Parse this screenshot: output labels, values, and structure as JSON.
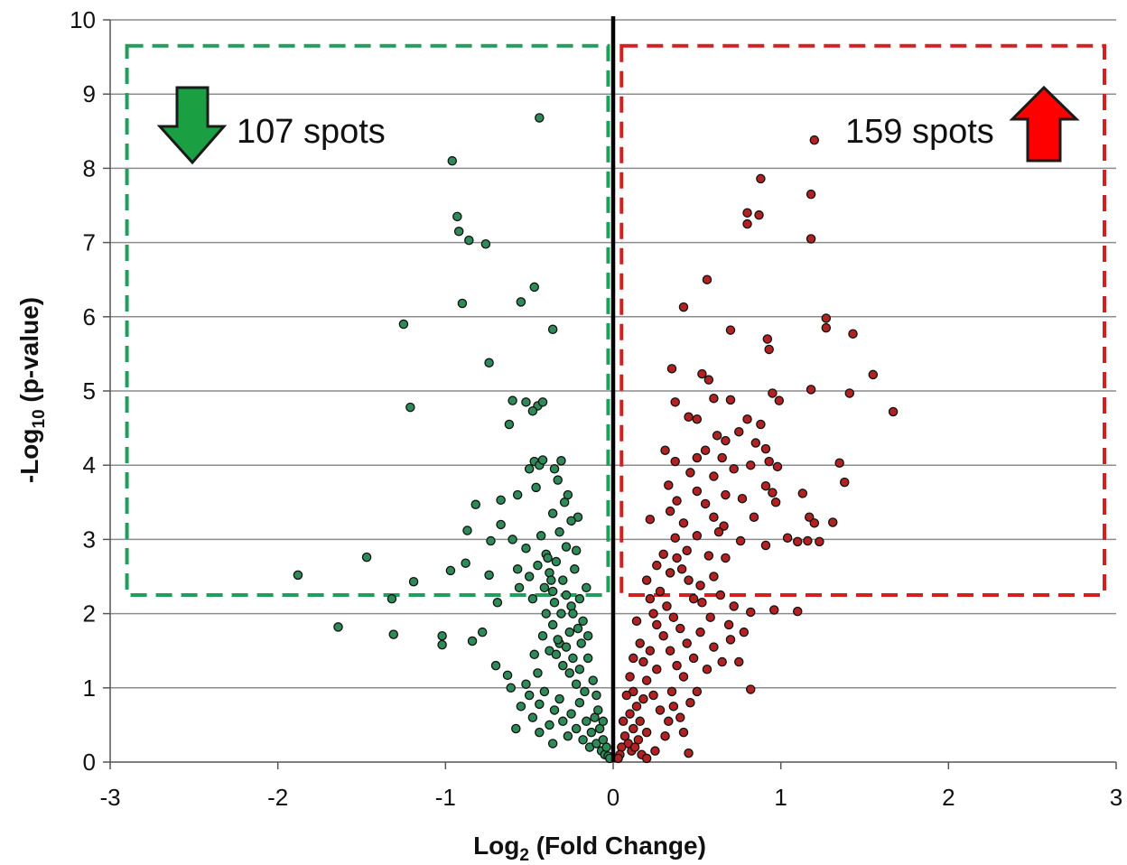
{
  "chart_data": {
    "type": "scatter",
    "title": "",
    "xlabel": "Log",
    "xlabel_sub": "2",
    "xlabel_rest": " (Fold Change)",
    "ylabel": "-Log",
    "ylabel_sub": "10",
    "ylabel_rest": " (p-value)",
    "xlim": [
      -3,
      3
    ],
    "ylim": [
      0,
      10
    ],
    "x_ticks": [
      -3,
      -2,
      -1,
      0,
      1,
      2,
      3
    ],
    "y_ticks": [
      0,
      1,
      2,
      3,
      4,
      5,
      6,
      7,
      8,
      9,
      10
    ],
    "grid": "horizontal",
    "threshold_line_x": 0,
    "colors": {
      "down": "#2e8b57",
      "up": "#b22222",
      "down_box": "#1fa05a",
      "up_box": "#d42020",
      "down_arrow": "#1aa043",
      "up_arrow": "#ff0000",
      "grid": "#8c8c8c"
    },
    "boxes": [
      {
        "name": "down",
        "x": [
          -2.9,
          -0.03
        ],
        "y": [
          2.25,
          9.65
        ]
      },
      {
        "name": "up",
        "x": [
          0.05,
          2.93
        ],
        "y": [
          2.25,
          9.65
        ]
      }
    ],
    "annotations": {
      "down_text": "107 spots",
      "up_text": "159 spots",
      "down_icon": "arrow-down-icon",
      "up_icon": "arrow-up-icon"
    },
    "series": [
      {
        "name": "down",
        "points": [
          [
            -0.44,
            8.68
          ],
          [
            -0.96,
            8.1
          ],
          [
            -0.93,
            7.35
          ],
          [
            -0.92,
            7.15
          ],
          [
            -0.86,
            7.03
          ],
          [
            -0.76,
            6.98
          ],
          [
            -0.47,
            6.4
          ],
          [
            -0.9,
            6.18
          ],
          [
            -0.55,
            6.2
          ],
          [
            -1.25,
            5.9
          ],
          [
            -0.36,
            5.83
          ],
          [
            -0.74,
            5.38
          ],
          [
            -1.21,
            4.78
          ],
          [
            -0.6,
            4.87
          ],
          [
            -0.52,
            4.85
          ],
          [
            -0.45,
            4.8
          ],
          [
            -0.42,
            4.85
          ],
          [
            -0.48,
            4.73
          ],
          [
            -0.62,
            4.55
          ],
          [
            -0.47,
            4.05
          ],
          [
            -0.44,
            4.0
          ],
          [
            -0.42,
            4.07
          ],
          [
            -0.35,
            3.95
          ],
          [
            -0.31,
            4.06
          ],
          [
            -0.5,
            3.95
          ],
          [
            -0.46,
            3.7
          ],
          [
            -0.57,
            3.6
          ],
          [
            -0.67,
            3.53
          ],
          [
            -0.82,
            3.47
          ],
          [
            -0.67,
            3.2
          ],
          [
            -0.36,
            3.35
          ],
          [
            -0.6,
            3.0
          ],
          [
            -0.73,
            2.98
          ],
          [
            -0.87,
            3.12
          ],
          [
            -0.74,
            2.52
          ],
          [
            -0.88,
            2.68
          ],
          [
            -0.97,
            2.58
          ],
          [
            -1.19,
            2.43
          ],
          [
            -1.47,
            2.76
          ],
          [
            -1.88,
            2.52
          ],
          [
            -1.32,
            2.2
          ],
          [
            -1.64,
            1.82
          ],
          [
            -1.31,
            1.72
          ],
          [
            -1.02,
            1.7
          ],
          [
            -1.02,
            1.58
          ],
          [
            -0.84,
            1.63
          ],
          [
            -0.78,
            1.75
          ],
          [
            -0.7,
            1.3
          ],
          [
            -0.63,
            1.17
          ],
          [
            -0.69,
            2.15
          ],
          [
            -0.56,
            2.35
          ],
          [
            -0.57,
            2.6
          ],
          [
            -0.52,
            2.88
          ],
          [
            -0.5,
            2.5
          ],
          [
            -0.48,
            2.2
          ],
          [
            -0.45,
            2.65
          ],
          [
            -0.43,
            3.05
          ],
          [
            -0.4,
            2.8
          ],
          [
            -0.38,
            2.55
          ],
          [
            -0.36,
            2.3
          ],
          [
            -0.34,
            2.7
          ],
          [
            -0.32,
            3.1
          ],
          [
            -0.3,
            2.45
          ],
          [
            -0.28,
            2.9
          ],
          [
            -0.27,
            3.6
          ],
          [
            -0.25,
            2.1
          ],
          [
            -0.23,
            2.6
          ],
          [
            -0.21,
            3.3
          ],
          [
            -0.2,
            2.2
          ],
          [
            -0.18,
            1.9
          ],
          [
            -0.16,
            2.35
          ],
          [
            -0.15,
            1.7
          ],
          [
            -0.4,
            2.0
          ],
          [
            -0.42,
            1.7
          ],
          [
            -0.38,
            1.5
          ],
          [
            -0.36,
            1.85
          ],
          [
            -0.34,
            1.45
          ],
          [
            -0.32,
            1.6
          ],
          [
            -0.3,
            1.3
          ],
          [
            -0.28,
            1.55
          ],
          [
            -0.26,
            1.2
          ],
          [
            -0.24,
            1.4
          ],
          [
            -0.22,
            1.05
          ],
          [
            -0.2,
            1.25
          ],
          [
            -0.45,
            1.2
          ],
          [
            -0.47,
            1.45
          ],
          [
            -0.5,
            0.9
          ],
          [
            -0.52,
            1.05
          ],
          [
            -0.55,
            0.75
          ],
          [
            -0.48,
            0.6
          ],
          [
            -0.44,
            0.78
          ],
          [
            -0.41,
            0.95
          ],
          [
            -0.38,
            0.5
          ],
          [
            -0.35,
            0.7
          ],
          [
            -0.32,
            0.85
          ],
          [
            -0.3,
            0.55
          ],
          [
            -0.27,
            0.35
          ],
          [
            -0.25,
            0.65
          ],
          [
            -0.22,
            0.45
          ],
          [
            -0.2,
            0.8
          ],
          [
            -0.18,
            0.3
          ],
          [
            -0.16,
            0.55
          ],
          [
            -0.14,
            0.2
          ],
          [
            -0.13,
            0.4
          ],
          [
            -0.11,
            0.6
          ],
          [
            -0.1,
            0.25
          ],
          [
            -0.08,
            0.45
          ],
          [
            -0.07,
            0.15
          ],
          [
            -0.06,
            0.3
          ],
          [
            -0.05,
            0.1
          ],
          [
            -0.04,
            0.2
          ],
          [
            -0.03,
            0.08
          ],
          [
            -0.02,
            0.05
          ],
          [
            -0.1,
            0.9
          ],
          [
            -0.12,
            1.1
          ],
          [
            -0.15,
            1.4
          ],
          [
            -0.17,
            0.95
          ],
          [
            -0.19,
            1.6
          ],
          [
            -0.21,
            1.8
          ],
          [
            -0.24,
            2.0
          ],
          [
            -0.26,
            1.75
          ],
          [
            -0.28,
            2.25
          ],
          [
            -0.31,
            2.0
          ],
          [
            -0.33,
            1.65
          ],
          [
            -0.35,
            2.15
          ],
          [
            -0.37,
            2.45
          ],
          [
            -0.39,
            2.75
          ],
          [
            -0.41,
            2.35
          ],
          [
            -0.29,
            3.5
          ],
          [
            -0.33,
            3.8
          ],
          [
            -0.25,
            3.25
          ],
          [
            -0.22,
            2.85
          ],
          [
            -0.58,
            0.45
          ],
          [
            -0.61,
            1.0
          ],
          [
            -0.44,
            0.4
          ],
          [
            -0.36,
            0.25
          ],
          [
            -0.09,
            0.7
          ],
          [
            -0.06,
            0.55
          ]
        ]
      },
      {
        "name": "up",
        "points": [
          [
            1.2,
            8.38
          ],
          [
            0.88,
            7.86
          ],
          [
            1.18,
            7.65
          ],
          [
            0.8,
            7.4
          ],
          [
            0.87,
            7.37
          ],
          [
            0.8,
            7.25
          ],
          [
            1.18,
            7.05
          ],
          [
            0.56,
            6.5
          ],
          [
            0.42,
            6.13
          ],
          [
            1.27,
            5.98
          ],
          [
            1.27,
            5.85
          ],
          [
            0.7,
            5.82
          ],
          [
            1.43,
            5.77
          ],
          [
            0.92,
            5.7
          ],
          [
            0.93,
            5.56
          ],
          [
            0.35,
            5.3
          ],
          [
            0.53,
            5.23
          ],
          [
            1.55,
            5.22
          ],
          [
            0.57,
            5.15
          ],
          [
            1.18,
            5.02
          ],
          [
            0.95,
            4.97
          ],
          [
            1.41,
            4.97
          ],
          [
            0.99,
            4.87
          ],
          [
            0.6,
            4.9
          ],
          [
            0.7,
            4.88
          ],
          [
            1.67,
            4.72
          ],
          [
            0.37,
            4.85
          ],
          [
            0.45,
            4.65
          ],
          [
            0.5,
            4.62
          ],
          [
            0.8,
            4.62
          ],
          [
            0.88,
            4.55
          ],
          [
            0.75,
            4.45
          ],
          [
            0.62,
            4.4
          ],
          [
            0.67,
            4.33
          ],
          [
            0.85,
            4.3
          ],
          [
            0.91,
            4.22
          ],
          [
            0.55,
            4.2
          ],
          [
            0.31,
            4.2
          ],
          [
            0.37,
            4.05
          ],
          [
            0.5,
            4.1
          ],
          [
            0.65,
            4.1
          ],
          [
            0.72,
            3.95
          ],
          [
            0.82,
            4.0
          ],
          [
            0.93,
            4.05
          ],
          [
            0.98,
            3.98
          ],
          [
            1.35,
            4.03
          ],
          [
            0.46,
            3.9
          ],
          [
            0.6,
            3.85
          ],
          [
            0.91,
            3.72
          ],
          [
            1.38,
            3.77
          ],
          [
            0.33,
            3.73
          ],
          [
            0.5,
            3.65
          ],
          [
            0.67,
            3.6
          ],
          [
            0.77,
            3.55
          ],
          [
            0.95,
            3.63
          ],
          [
            1.13,
            3.62
          ],
          [
            0.38,
            3.52
          ],
          [
            0.55,
            3.48
          ],
          [
            0.34,
            3.38
          ],
          [
            0.22,
            3.27
          ],
          [
            0.42,
            3.22
          ],
          [
            0.6,
            3.3
          ],
          [
            0.66,
            3.18
          ],
          [
            0.84,
            3.3
          ],
          [
            0.97,
            3.5
          ],
          [
            1.17,
            3.3
          ],
          [
            1.2,
            3.22
          ],
          [
            1.31,
            3.23
          ],
          [
            0.37,
            3.02
          ],
          [
            0.5,
            3.05
          ],
          [
            0.63,
            3.1
          ],
          [
            0.76,
            2.98
          ],
          [
            0.91,
            2.92
          ],
          [
            1.04,
            3.02
          ],
          [
            1.1,
            2.97
          ],
          [
            1.16,
            2.98
          ],
          [
            1.23,
            2.97
          ],
          [
            0.3,
            2.8
          ],
          [
            0.44,
            2.85
          ],
          [
            0.57,
            2.78
          ],
          [
            0.67,
            2.75
          ],
          [
            0.26,
            2.65
          ],
          [
            0.34,
            2.55
          ],
          [
            0.45,
            2.45
          ],
          [
            0.52,
            2.38
          ],
          [
            0.6,
            2.5
          ],
          [
            0.48,
            2.2
          ],
          [
            0.72,
            2.1
          ],
          [
            0.82,
            2.02
          ],
          [
            0.96,
            2.05
          ],
          [
            1.1,
            2.03
          ],
          [
            0.2,
            2.45
          ],
          [
            0.22,
            2.2
          ],
          [
            0.24,
            2.0
          ],
          [
            0.26,
            1.85
          ],
          [
            0.28,
            2.3
          ],
          [
            0.3,
            1.7
          ],
          [
            0.32,
            2.1
          ],
          [
            0.34,
            1.5
          ],
          [
            0.36,
            1.95
          ],
          [
            0.38,
            1.3
          ],
          [
            0.4,
            1.8
          ],
          [
            0.42,
            1.15
          ],
          [
            0.44,
            1.6
          ],
          [
            0.48,
            1.4
          ],
          [
            0.52,
            1.75
          ],
          [
            0.56,
            1.25
          ],
          [
            0.6,
            1.55
          ],
          [
            0.65,
            1.35
          ],
          [
            0.7,
            1.65
          ],
          [
            0.75,
            1.35
          ],
          [
            0.82,
            0.98
          ],
          [
            0.5,
            0.95
          ],
          [
            0.46,
            0.8
          ],
          [
            0.4,
            0.6
          ],
          [
            0.36,
            0.75
          ],
          [
            0.42,
            0.4
          ],
          [
            0.45,
            0.12
          ],
          [
            0.14,
            1.9
          ],
          [
            0.16,
            1.6
          ],
          [
            0.18,
            1.35
          ],
          [
            0.2,
            1.1
          ],
          [
            0.22,
            1.5
          ],
          [
            0.24,
            0.9
          ],
          [
            0.26,
            1.25
          ],
          [
            0.28,
            0.7
          ],
          [
            0.12,
            1.4
          ],
          [
            0.1,
            1.15
          ],
          [
            0.12,
            0.95
          ],
          [
            0.14,
            0.75
          ],
          [
            0.16,
            0.55
          ],
          [
            0.18,
            0.85
          ],
          [
            0.2,
            0.4
          ],
          [
            0.08,
            0.9
          ],
          [
            0.1,
            0.65
          ],
          [
            0.12,
            0.45
          ],
          [
            0.06,
            0.55
          ],
          [
            0.07,
            0.35
          ],
          [
            0.09,
            0.25
          ],
          [
            0.05,
            0.2
          ],
          [
            0.04,
            0.1
          ],
          [
            0.03,
            0.05
          ],
          [
            0.11,
            0.15
          ],
          [
            0.15,
            0.3
          ],
          [
            0.13,
            0.2
          ],
          [
            0.17,
            0.1
          ],
          [
            0.2,
            0.05
          ],
          [
            0.25,
            0.15
          ],
          [
            0.31,
            0.35
          ],
          [
            0.33,
            0.55
          ],
          [
            0.35,
            0.95
          ],
          [
            0.38,
            2.75
          ],
          [
            0.41,
            2.6
          ],
          [
            0.53,
            2.15
          ],
          [
            0.58,
            1.95
          ],
          [
            0.64,
            2.25
          ],
          [
            0.69,
            1.85
          ],
          [
            0.78,
            1.75
          ]
        ]
      }
    ]
  }
}
